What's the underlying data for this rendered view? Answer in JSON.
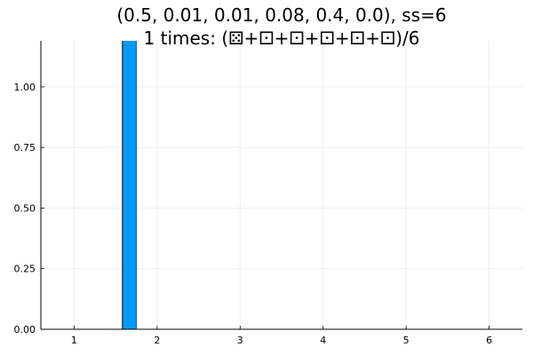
{
  "chart_data": {
    "type": "bar",
    "title_line1": "(0.5, 0.01, 0.01, 0.08, 0.4, 0.0), ss=6",
    "title_line2": "1 times: (⚄+⚀+⚀+⚀+⚀+⚀)/6",
    "xlabel": "",
    "ylabel": "",
    "xlim": [
      0.6,
      6.4
    ],
    "ylim": [
      0,
      1.19
    ],
    "xticks": [
      1,
      2,
      3,
      4,
      5,
      6
    ],
    "yticks": [
      0.0,
      0.25,
      0.5,
      0.75,
      1.0
    ],
    "ytick_labels": [
      "0.00",
      "0.25",
      "0.50",
      "0.75",
      "1.00"
    ],
    "bars": [
      {
        "x_start": 1.583,
        "x_end": 1.75,
        "value": 1.19
      }
    ],
    "grid": true,
    "legend": "none",
    "bar_color": "#009af9",
    "bar_edge_color": "#000000"
  }
}
